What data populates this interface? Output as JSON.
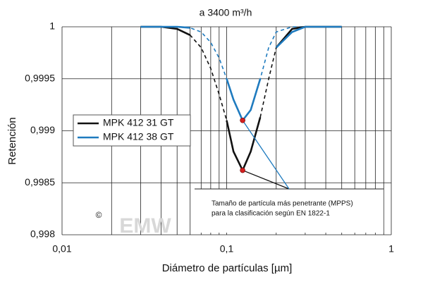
{
  "chart_data": {
    "type": "line",
    "title": "a 3400 m³/h",
    "x_label": "Diámetro de partículas [µm]",
    "y_label": "Retención",
    "x": [
      0.03,
      0.04,
      0.05,
      0.06,
      0.07,
      0.08,
      0.09,
      0.1,
      0.11,
      0.125,
      0.14,
      0.16,
      0.18,
      0.2,
      0.25,
      0.3,
      0.4,
      0.5
    ],
    "series": [
      {
        "color": "#111111",
        "line_style": "dashed",
        "values": [
          1,
          1,
          0.99998,
          0.99992,
          0.9998,
          0.9996,
          0.99935,
          0.9991,
          0.9988,
          0.99862,
          0.9988,
          0.99913,
          0.9995,
          0.9998,
          0.99998,
          1,
          1,
          1
        ]
      },
      {
        "color": "#1f7bbf",
        "line_style": "dashed",
        "values": [
          1,
          1,
          1,
          0.99999,
          0.99995,
          0.99985,
          0.9997,
          0.9995,
          0.9993,
          0.9991,
          0.9992,
          0.9995,
          0.9998,
          0.99995,
          1,
          1,
          1,
          1
        ]
      },
      {
        "name": "MPK 412 31 GT",
        "color": "#111111",
        "line_style": "solid",
        "values": [
          1,
          1,
          0.99998,
          0.99992,
          null,
          null,
          null,
          0.9991,
          0.9988,
          0.99862,
          0.9988,
          0.99913,
          null,
          0.9998,
          0.99998,
          1,
          1,
          1
        ]
      },
      {
        "name": "MPK 412 38 GT",
        "color": "#1f7bbf",
        "line_style": "solid",
        "values": [
          1,
          1,
          1,
          0.99999,
          null,
          null,
          null,
          0.9995,
          0.9993,
          0.9991,
          0.9992,
          0.9995,
          null,
          0.9998,
          0.99995,
          1,
          1,
          1
        ]
      }
    ],
    "mpps_marker_color": "#d42020",
    "annotation": [
      "Tamaño de partícula más penetrante (MPPS)",
      "para la clasificación según EN 1822-1"
    ],
    "copyright": "©",
    "watermark": "EMW",
    "x_log": true,
    "xlim": [
      0.01,
      1
    ],
    "xticks": [
      {
        "value": 0.01,
        "label": "0,01"
      },
      {
        "value": 0.1,
        "label": "0,1"
      },
      1
    ],
    "ylim": [
      0.998,
      1
    ],
    "yticks": [
      {
        "value": 0.998,
        "label": "0,998"
      },
      {
        "value": 0.9985,
        "label": "0,9985"
      },
      {
        "value": 0.999,
        "label": "0,999"
      },
      {
        "value": 0.9995,
        "label": "0,9995"
      },
      1
    ],
    "grid": true,
    "minor_grid": true,
    "legend_position": "left"
  }
}
